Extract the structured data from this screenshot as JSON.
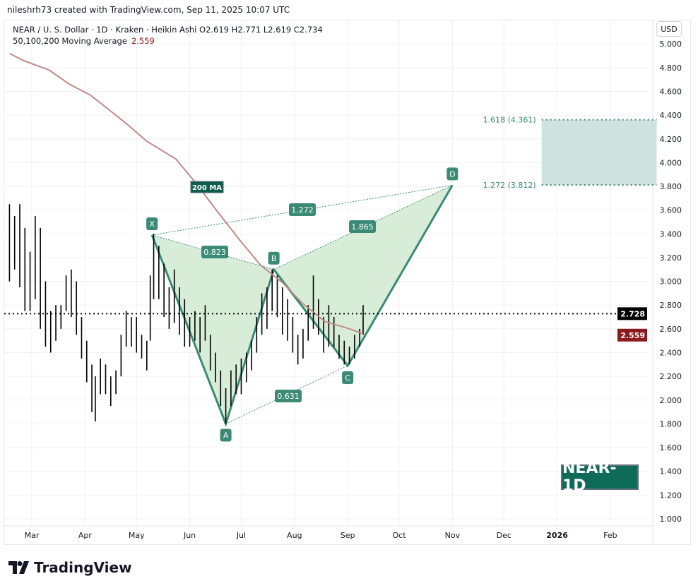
{
  "credit": "nileshrh73 created with TradingView.com, Sep 11, 2025 10:07 UTC",
  "legend": {
    "symbol_line": "NEAR / U. S. Dollar · 1D · Kraken · Heikin Ashi  O2.619  H2.771  L2.619  C2.734",
    "ma_label": "50,100,200 Moving Average",
    "ma_value": "2.559"
  },
  "currency": "USD",
  "badge": "NEAR-1D",
  "logo_text": "TradingView",
  "colors": {
    "pattern": "#3a8a76",
    "pattern_fill": "#d6ecd6",
    "ma": "#c08a88",
    "target_zone": "#c9dfdb",
    "last_price_bg": "#000000",
    "ma_price_bg": "#8b1a1f"
  },
  "chart_data": {
    "type": "bar",
    "style": "Heikin Ashi",
    "ylim": [
      1.0,
      5.0
    ],
    "grid": true,
    "y_ticks": [
      "1.000",
      "1.200",
      "1.400",
      "1.600",
      "1.800",
      "2.000",
      "2.200",
      "2.400",
      "2.600",
      "2.800",
      "3.000",
      "3.200",
      "3.400",
      "3.600",
      "3.800",
      "4.000",
      "4.200",
      "4.400",
      "4.600",
      "4.800",
      "5.000"
    ],
    "x_ticks": [
      {
        "label": "Mar",
        "date": "2025-03-01"
      },
      {
        "label": "Apr",
        "date": "2025-04-01"
      },
      {
        "label": "May",
        "date": "2025-05-01"
      },
      {
        "label": "Jun",
        "date": "2025-06-01"
      },
      {
        "label": "Jul",
        "date": "2025-07-01"
      },
      {
        "label": "Aug",
        "date": "2025-08-01"
      },
      {
        "label": "Sep",
        "date": "2025-09-01"
      },
      {
        "label": "Oct",
        "date": "2025-10-01"
      },
      {
        "label": "Nov",
        "date": "2025-11-01"
      },
      {
        "label": "Dec",
        "date": "2025-12-01"
      },
      {
        "label": "2026",
        "date": "2026-01-01"
      },
      {
        "label": "Feb",
        "date": "2026-02-01"
      }
    ],
    "bars": [
      [
        "2025-02-16",
        3.65,
        3.0
      ],
      [
        "2025-02-19",
        3.55,
        3.1
      ],
      [
        "2025-02-22",
        3.65,
        2.95
      ],
      [
        "2025-02-25",
        3.45,
        2.75
      ],
      [
        "2025-02-28",
        3.25,
        2.75
      ],
      [
        "2025-03-03",
        3.55,
        2.85
      ],
      [
        "2025-03-06",
        3.45,
        2.6
      ],
      [
        "2025-03-09",
        3.0,
        2.45
      ],
      [
        "2025-03-12",
        2.75,
        2.4
      ],
      [
        "2025-03-15",
        2.8,
        2.5
      ],
      [
        "2025-03-18",
        2.8,
        2.6
      ],
      [
        "2025-03-21",
        3.05,
        2.75
      ],
      [
        "2025-03-24",
        3.1,
        2.7
      ],
      [
        "2025-03-27",
        3.0,
        2.55
      ],
      [
        "2025-03-30",
        2.7,
        2.35
      ],
      [
        "2025-04-02",
        2.5,
        2.15
      ],
      [
        "2025-04-05",
        2.3,
        1.9
      ],
      [
        "2025-04-07",
        2.2,
        1.82
      ],
      [
        "2025-04-10",
        2.35,
        2.05
      ],
      [
        "2025-04-13",
        2.3,
        2.05
      ],
      [
        "2025-04-16",
        2.2,
        1.95
      ],
      [
        "2025-04-19",
        2.25,
        2.05
      ],
      [
        "2025-04-22",
        2.55,
        2.2
      ],
      [
        "2025-04-25",
        2.75,
        2.45
      ],
      [
        "2025-04-28",
        2.7,
        2.45
      ],
      [
        "2025-05-01",
        2.7,
        2.4
      ],
      [
        "2025-05-04",
        2.55,
        2.35
      ],
      [
        "2025-05-07",
        2.5,
        2.25
      ],
      [
        "2025-05-09",
        3.05,
        2.5
      ],
      [
        "2025-05-11",
        3.4,
        2.85
      ],
      [
        "2025-05-14",
        3.3,
        2.85
      ],
      [
        "2025-05-17",
        3.15,
        2.7
      ],
      [
        "2025-05-20",
        2.95,
        2.6
      ],
      [
        "2025-05-23",
        3.1,
        2.65
      ],
      [
        "2025-05-26",
        2.95,
        2.55
      ],
      [
        "2025-05-29",
        2.85,
        2.45
      ],
      [
        "2025-06-01",
        2.7,
        2.45
      ],
      [
        "2025-06-04",
        2.75,
        2.5
      ],
      [
        "2025-06-07",
        2.7,
        2.4
      ],
      [
        "2025-06-10",
        2.8,
        2.5
      ],
      [
        "2025-06-13",
        2.55,
        2.25
      ],
      [
        "2025-06-16",
        2.4,
        2.15
      ],
      [
        "2025-06-19",
        2.25,
        1.95
      ],
      [
        "2025-06-22",
        2.1,
        1.8
      ],
      [
        "2025-06-25",
        2.25,
        1.95
      ],
      [
        "2025-06-28",
        2.3,
        2.05
      ],
      [
        "2025-07-01",
        2.35,
        2.05
      ],
      [
        "2025-07-04",
        2.4,
        2.15
      ],
      [
        "2025-07-07",
        2.5,
        2.25
      ],
      [
        "2025-07-10",
        2.7,
        2.4
      ],
      [
        "2025-07-13",
        2.9,
        2.55
      ],
      [
        "2025-07-16",
        2.95,
        2.6
      ],
      [
        "2025-07-19",
        3.1,
        2.75
      ],
      [
        "2025-07-22",
        3.05,
        2.7
      ],
      [
        "2025-07-25",
        2.95,
        2.55
      ],
      [
        "2025-07-28",
        2.85,
        2.5
      ],
      [
        "2025-07-31",
        2.7,
        2.4
      ],
      [
        "2025-08-03",
        2.55,
        2.3
      ],
      [
        "2025-08-06",
        2.6,
        2.35
      ],
      [
        "2025-08-09",
        2.8,
        2.5
      ],
      [
        "2025-08-12",
        3.05,
        2.6
      ],
      [
        "2025-08-15",
        2.85,
        2.55
      ],
      [
        "2025-08-18",
        2.7,
        2.4
      ],
      [
        "2025-08-21",
        2.8,
        2.45
      ],
      [
        "2025-08-24",
        2.7,
        2.45
      ],
      [
        "2025-08-27",
        2.55,
        2.35
      ],
      [
        "2025-08-30",
        2.5,
        2.3
      ],
      [
        "2025-09-02",
        2.45,
        2.3
      ],
      [
        "2025-09-05",
        2.55,
        2.35
      ],
      [
        "2025-09-08",
        2.6,
        2.45
      ],
      [
        "2025-09-10",
        2.8,
        2.55
      ]
    ],
    "moving_average_200": [
      [
        "2025-02-16",
        4.92
      ],
      [
        "2025-02-24",
        4.86
      ],
      [
        "2025-03-11",
        4.78
      ],
      [
        "2025-03-23",
        4.66
      ],
      [
        "2025-04-04",
        4.57
      ],
      [
        "2025-04-25",
        4.33
      ],
      [
        "2025-05-07",
        4.18
      ],
      [
        "2025-05-24",
        4.03
      ],
      [
        "2025-06-05",
        3.82
      ],
      [
        "2025-06-17",
        3.59
      ],
      [
        "2025-06-30",
        3.35
      ],
      [
        "2025-07-12",
        3.14
      ],
      [
        "2025-07-25",
        2.99
      ],
      [
        "2025-08-06",
        2.81
      ],
      [
        "2025-08-19",
        2.66
      ],
      [
        "2025-08-31",
        2.61
      ],
      [
        "2025-09-10",
        2.56
      ]
    ],
    "ma_annotation": "200 MA",
    "harmonic_pattern": {
      "points": [
        {
          "label": "X",
          "date": "2025-05-10",
          "price": 3.39
        },
        {
          "label": "A",
          "date": "2025-06-22",
          "price": 1.8
        },
        {
          "label": "B",
          "date": "2025-07-20",
          "price": 3.1
        },
        {
          "label": "C",
          "date": "2025-09-01",
          "price": 2.29
        },
        {
          "label": "D",
          "date": "2025-11-01",
          "price": 3.81
        }
      ],
      "ratios": [
        {
          "label": "0.823",
          "between": [
            "X",
            "B"
          ]
        },
        {
          "label": "0.631",
          "between": [
            "A",
            "C"
          ]
        },
        {
          "label": "1.865",
          "between": [
            "B",
            "D"
          ]
        },
        {
          "label": "1.272",
          "between": [
            "X",
            "D"
          ]
        }
      ]
    },
    "target_zone": {
      "start": "2025-12-23",
      "end": "2026-02-28",
      "levels": [
        {
          "label": "1.618 (4.361)",
          "price": 4.361
        },
        {
          "label": "1.272 (3.812)",
          "price": 3.812
        }
      ]
    },
    "last_price": {
      "label": "2.728",
      "price": 2.728
    },
    "ma_price": {
      "label": "2.559",
      "price": 2.559
    }
  }
}
